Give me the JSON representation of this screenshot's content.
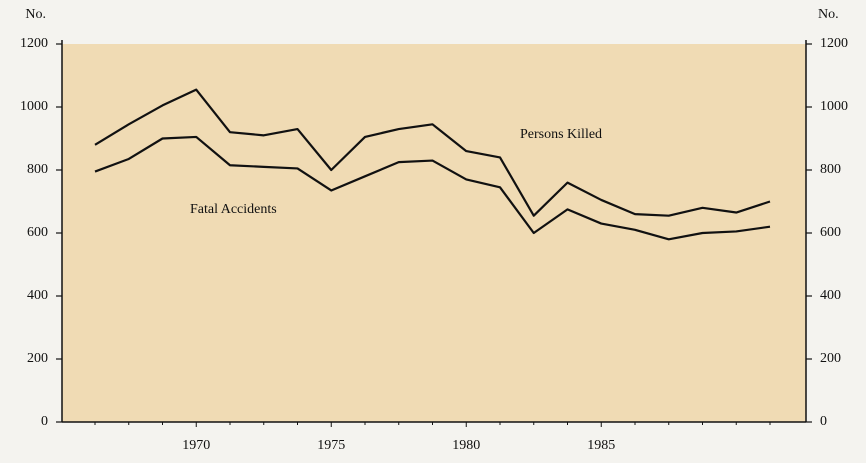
{
  "chart_data": {
    "type": "line",
    "y_label": "No.",
    "y2_label": "No.",
    "categories": [
      null,
      null,
      null,
      "1970",
      null,
      null,
      null,
      "1975",
      null,
      null,
      null,
      "1980",
      null,
      null,
      null,
      "1985",
      null,
      null,
      null,
      null,
      null
    ],
    "series": [
      {
        "name": "Persons Killed",
        "color": "#111111",
        "values": [
          880,
          945,
          1005,
          1055,
          920,
          910,
          930,
          800,
          905,
          930,
          945,
          860,
          840,
          655,
          760,
          705,
          660,
          655,
          680,
          665,
          700
        ]
      },
      {
        "name": "Fatal Accidents",
        "color": "#111111",
        "values": [
          795,
          835,
          900,
          905,
          815,
          810,
          805,
          735,
          780,
          825,
          830,
          770,
          745,
          600,
          675,
          630,
          610,
          580,
          600,
          605,
          620
        ]
      }
    ],
    "ylim": [
      0,
      1200
    ],
    "yticks": [
      0,
      200,
      400,
      600,
      800,
      1000,
      1200
    ],
    "y2lim": [
      0,
      1200
    ],
    "y2ticks": [
      0,
      200,
      400,
      600,
      800,
      1000,
      1200
    ],
    "plot_background": "#f0dbb4"
  }
}
